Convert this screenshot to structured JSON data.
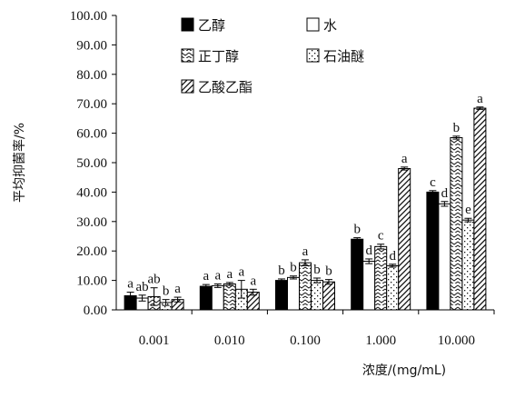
{
  "chart_data": {
    "type": "bar",
    "ylabel": "平均抑菌率/%",
    "xlabel": "浓度/(mg/mL)",
    "ylim": [
      0,
      100
    ],
    "yticks": [
      "0.00",
      "10.00",
      "20.00",
      "30.00",
      "40.00",
      "50.00",
      "60.00",
      "70.00",
      "80.00",
      "90.00",
      "100.00"
    ],
    "categories": [
      "0.001",
      "0.010",
      "0.100",
      "1.000",
      "10.000"
    ],
    "grid": false,
    "legend_position": "top-inside",
    "series": [
      {
        "name": "乙醇",
        "pattern": "solid",
        "color": "#000000",
        "values": [
          4.8,
          8.0,
          10.0,
          24.0,
          40.0
        ],
        "errors": [
          1.2,
          0.6,
          0.5,
          0.5,
          0.5
        ],
        "sig": [
          "a",
          "a",
          "b",
          "b",
          "c"
        ]
      },
      {
        "name": "水",
        "pattern": "white",
        "color": "#ffffff",
        "values": [
          4.0,
          8.2,
          11.0,
          16.5,
          36.0
        ],
        "errors": [
          1.0,
          0.6,
          0.5,
          0.8,
          0.8
        ],
        "sig": [
          "ab",
          "a",
          "b",
          "d",
          "d"
        ]
      },
      {
        "name": "正丁醇",
        "pattern": "zigzag",
        "color": "#ffffff",
        "values": [
          4.5,
          8.8,
          16.0,
          21.5,
          58.5
        ],
        "errors": [
          3.0,
          0.5,
          1.0,
          0.8,
          0.5
        ],
        "sig": [
          "ab",
          "a",
          "a",
          "c",
          "b"
        ]
      },
      {
        "name": "石油醚",
        "pattern": "dots",
        "color": "#ffffff",
        "values": [
          2.5,
          7.0,
          10.0,
          15.0,
          30.5
        ],
        "errors": [
          1.0,
          3.0,
          0.8,
          0.5,
          0.6
        ],
        "sig": [
          "b",
          "a",
          "b",
          "d",
          "e"
        ]
      },
      {
        "name": "乙酸乙酯",
        "pattern": "diagonal",
        "color": "#ffffff",
        "values": [
          3.5,
          6.0,
          9.5,
          48.0,
          68.5
        ],
        "errors": [
          0.8,
          1.0,
          0.8,
          0.5,
          0.4
        ],
        "sig": [
          "a",
          "a",
          "b",
          "a",
          "a"
        ]
      }
    ]
  }
}
